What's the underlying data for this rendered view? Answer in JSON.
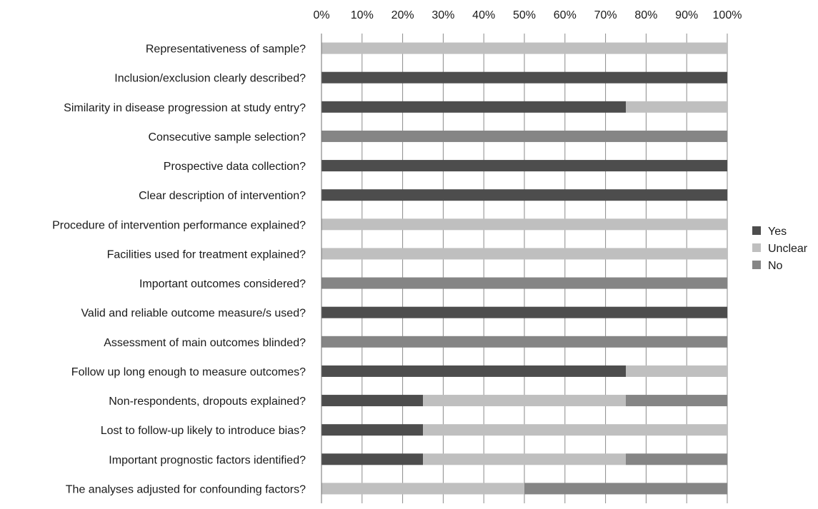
{
  "chart_data": {
    "type": "bar",
    "orientation": "horizontal",
    "stacked": true,
    "percent_stacked": true,
    "categories": [
      "Representativeness of  sample?",
      "Inclusion/exclusion clearly described?",
      "Similarity in disease progression at study entry?",
      "Consecutive sample selection?",
      "Prospective data collection?",
      "Clear description of intervention?",
      "Procedure of intervention performance explained?",
      "Facilities used for treatment explained?",
      "Important outcomes considered?",
      "Valid and reliable outcome measure/s used?",
      "Assessment of main outcomes blinded?",
      "Follow up long enough to measure outcomes?",
      "Non-respondents, dropouts explained?",
      "Lost to follow-up likely to introduce bias?",
      "Important prognostic factors identified?",
      "The analyses adjusted for confounding factors?"
    ],
    "series": [
      {
        "name": "Yes",
        "color": "#4d4d4d",
        "values": [
          0,
          100,
          75,
          0,
          100,
          100,
          0,
          0,
          0,
          100,
          0,
          75,
          25,
          25,
          25,
          0
        ]
      },
      {
        "name": "Unclear",
        "color": "#bfbfbf",
        "values": [
          100,
          0,
          25,
          0,
          0,
          0,
          100,
          100,
          0,
          0,
          0,
          25,
          50,
          75,
          50,
          50
        ]
      },
      {
        "name": "No",
        "color": "#858585",
        "values": [
          0,
          0,
          0,
          100,
          0,
          0,
          0,
          0,
          100,
          0,
          100,
          0,
          25,
          0,
          25,
          50
        ]
      }
    ],
    "x_ticks": [
      "0%",
      "10%",
      "20%",
      "30%",
      "40%",
      "50%",
      "60%",
      "70%",
      "80%",
      "90%",
      "100%"
    ],
    "xlim": [
      0,
      100
    ],
    "x_axis_position": "top",
    "grid": true,
    "legend_position": "right",
    "title": "",
    "xlabel": "",
    "ylabel": ""
  }
}
